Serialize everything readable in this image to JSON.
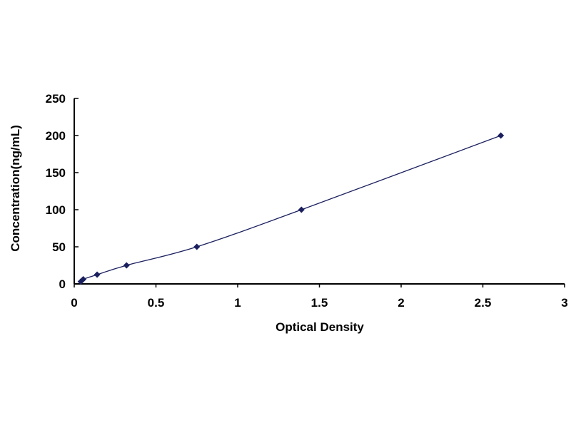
{
  "chart_data": {
    "type": "scatter",
    "title": "",
    "xlabel": "Optical Density",
    "ylabel": "Concentration(ng/mL)",
    "xlim": [
      0,
      3
    ],
    "ylim": [
      0,
      250
    ],
    "x_ticks": [
      "0",
      "0.5",
      "1",
      "1.5",
      "2",
      "2.5",
      "3"
    ],
    "y_ticks": [
      "0",
      "50",
      "100",
      "150",
      "200",
      "250"
    ],
    "grid": false,
    "legend": "none",
    "trendline": "smooth curve through points",
    "series": [
      {
        "x": [
          0.04,
          0.055,
          0.14,
          0.32,
          0.75,
          1.39,
          2.61
        ],
        "y": [
          3.12,
          6.25,
          12.5,
          25,
          50,
          100,
          200
        ],
        "marker": "diamond",
        "color": "#1a1f5e"
      }
    ]
  }
}
